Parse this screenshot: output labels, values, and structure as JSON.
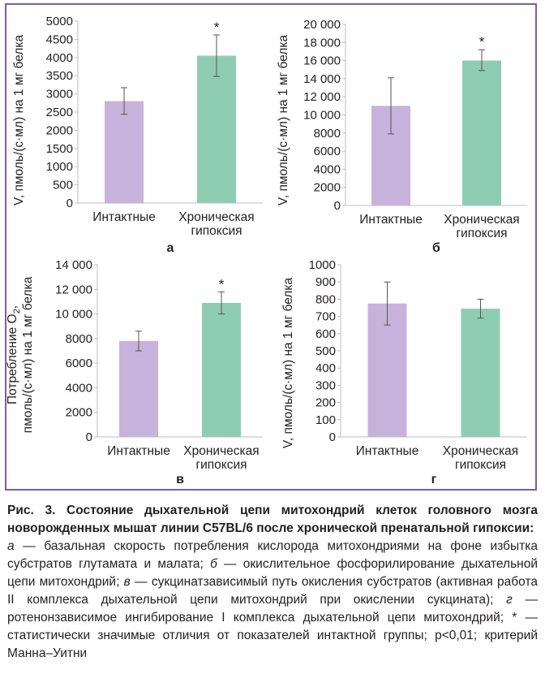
{
  "chart_data": [
    {
      "type": "bar",
      "panel_label": "а",
      "categories": [
        "Интактные",
        "Хроническая|гипоксия"
      ],
      "values": [
        2800,
        4050
      ],
      "errors": [
        [
          2440,
          3170
        ],
        [
          3480,
          4620
        ]
      ],
      "significance": [
        "",
        "*"
      ],
      "colors": [
        "#c7b2dc",
        "#8ecdb4"
      ],
      "ylabel": "V, пмоль/(с·мл) на 1 мг белка",
      "ylim": [
        0,
        5000
      ],
      "yticks": [
        0,
        500,
        1000,
        1500,
        2000,
        2500,
        3000,
        3500,
        4000,
        4500,
        5000
      ],
      "ytick_labels": [
        "0",
        "500",
        "1000",
        "1500",
        "2000",
        "2500",
        "3000",
        "3500",
        "4000",
        "4500",
        "5000"
      ],
      "grid": false
    },
    {
      "type": "bar",
      "panel_label": "б",
      "categories": [
        "Интактные",
        "Хроническая|гипоксия"
      ],
      "values": [
        11000,
        16000
      ],
      "errors": [
        [
          7900,
          14100
        ],
        [
          14900,
          17200
        ]
      ],
      "significance": [
        "",
        "*"
      ],
      "colors": [
        "#c7b2dc",
        "#8ecdb4"
      ],
      "ylabel": "V, пмоль/(с·мл) на 1 мг белка",
      "ylim": [
        0,
        20000
      ],
      "yticks": [
        0,
        2000,
        4000,
        6000,
        8000,
        10000,
        12000,
        14000,
        16000,
        18000,
        20000
      ],
      "ytick_labels": [
        "0",
        "2000",
        "4000",
        "6000",
        "8000",
        "10 000",
        "12 000",
        "14 000",
        "16 000",
        "18 000",
        "20 000"
      ],
      "grid": false
    },
    {
      "type": "bar",
      "panel_label": "в",
      "categories": [
        "Интактные",
        "Хроническая|гипоксия"
      ],
      "values": [
        7800,
        10900
      ],
      "errors": [
        [
          7000,
          8600
        ],
        [
          10000,
          11800
        ]
      ],
      "significance": [
        "",
        "*"
      ],
      "colors": [
        "#c7b2dc",
        "#8ecdb4"
      ],
      "ylabel_lines": [
        "Потребление O",
        "пмоль/(с·мл) на 1 мг белка"
      ],
      "ylabel_sub": "2",
      "ylabel_suffix": ",",
      "ylim": [
        0,
        14000
      ],
      "yticks": [
        0,
        2000,
        4000,
        6000,
        8000,
        10000,
        12000,
        14000
      ],
      "ytick_labels": [
        "0",
        "2000",
        "4000",
        "6000",
        "8000",
        "10 000",
        "12 000",
        "14 000"
      ],
      "grid": false
    },
    {
      "type": "bar",
      "panel_label": "г",
      "categories": [
        "Интактные",
        "Хроническая|гипоксия"
      ],
      "values": [
        775,
        745
      ],
      "errors": [
        [
          650,
          900
        ],
        [
          690,
          800
        ]
      ],
      "significance": [
        "",
        ""
      ],
      "colors": [
        "#c7b2dc",
        "#8ecdb4"
      ],
      "ylabel": "V, пмоль/(с·мл) на 1 мг белка",
      "ylim": [
        0,
        1000
      ],
      "yticks": [
        0,
        100,
        200,
        300,
        400,
        500,
        600,
        700,
        800,
        900,
        1000
      ],
      "ytick_labels": [
        "0",
        "100",
        "200",
        "300",
        "400",
        "500",
        "600",
        "700",
        "800",
        "900",
        "1000"
      ],
      "grid": false
    }
  ],
  "caption": {
    "title": "Рис. 3. Состояние дыхательной цепи митохондрий клеток головного мозга новорожденных мышат линии C57BL/6 после хронической пренатальной гипоксии:",
    "parts": [
      {
        "letter": "а",
        "text": " — базальная скорость потребления кислорода митохондриями на фоне избытка субстратов глутамата и малата; "
      },
      {
        "letter": "б",
        "text": " — окислительное фосфорилирование дыхательной цепи митохондрий; "
      },
      {
        "letter": "в",
        "text": " — сукцинатзависимый путь окисления субстратов (активная работа II комплекса дыхательной цепи митохондрий при окислении сукцината); "
      },
      {
        "letter": "г",
        "text": " — ротенонзависимое ингибирование I комплекса дыхательной цепи митохондрий; * — статистически значимые отличия от показателей интактной группы; p<0,01; критерий Манна–Уитни"
      }
    ]
  }
}
